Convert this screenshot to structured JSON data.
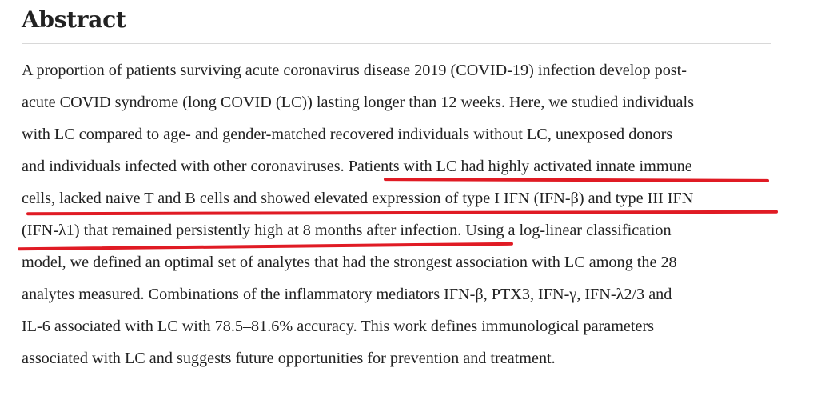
{
  "section": {
    "heading": "Abstract"
  },
  "abstract": {
    "lines": [
      {
        "pre": "A proportion of patients surviving acute coronavirus disease 2019 (COVID-19) infection develop post-",
        "highlight": "",
        "post": ""
      },
      {
        "pre": "acute COVID syndrome (long COVID (LC)) lasting longer than 12 weeks. Here, we studied individuals",
        "highlight": "",
        "post": ""
      },
      {
        "pre": "with LC compared to age- and gender-matched recovered individuals without LC, unexposed donors",
        "highlight": "",
        "post": ""
      },
      {
        "pre": "and individuals infected with other coronaviruses. ",
        "highlight": "Patients with LC had highly activated innate immune",
        "post": ""
      },
      {
        "pre": "",
        "highlight": "cells, lacked naive T and B cells and showed elevated expression of type I IFN (IFN-β) and type III IFN",
        "post": ""
      },
      {
        "pre": "",
        "highlight": "(IFN-λ1) that remained persistently high at 8 months after infection.",
        "post": " Using a log-linear classification"
      },
      {
        "pre": "model, we defined an optimal set of analytes that had the strongest association with LC among the 28",
        "highlight": "",
        "post": ""
      },
      {
        "pre": "analytes measured. Combinations of the inflammatory mediators IFN-β, PTX3, IFN-γ, IFN-λ2/3 and",
        "highlight": "",
        "post": ""
      },
      {
        "pre": "IL-6 associated with LC with 78.5–81.6% accuracy. This work defines immunological parameters",
        "highlight": "",
        "post": ""
      },
      {
        "pre": "associated with LC and suggests future opportunities for prevention and treatment.",
        "highlight": "",
        "post": ""
      }
    ]
  },
  "colors": {
    "text": "#222222",
    "underline": "#e01b24",
    "rule": "#d8d8d8"
  }
}
